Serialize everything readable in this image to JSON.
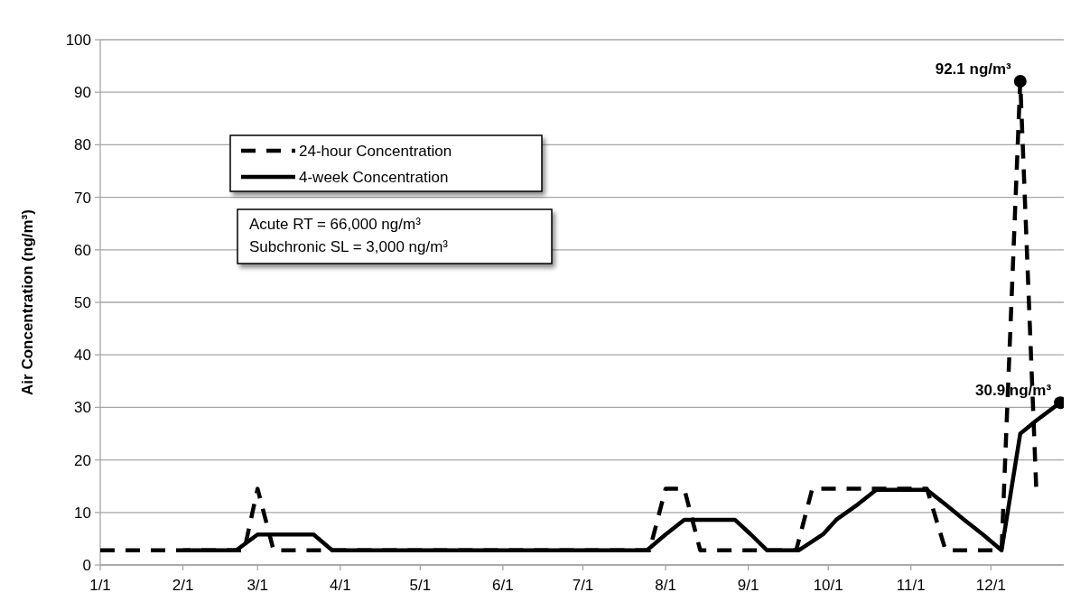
{
  "chart_data": {
    "type": "line",
    "ylabel": "Air Concentration (ng/m³)",
    "xlim": [
      "--01-01",
      "--12-29"
    ],
    "xticks": [
      {
        "value": "--01-01",
        "label": "1/1"
      },
      {
        "value": "--02-01",
        "label": "2/1"
      },
      {
        "value": "--03-01",
        "label": "3/1"
      },
      {
        "value": "--04-01",
        "label": "4/1"
      },
      {
        "value": "--05-01",
        "label": "5/1"
      },
      {
        "value": "--06-01",
        "label": "6/1"
      },
      {
        "value": "--07-01",
        "label": "7/1"
      },
      {
        "value": "--08-01",
        "label": "8/1"
      },
      {
        "value": "--09-01",
        "label": "9/1"
      },
      {
        "value": "--10-01",
        "label": "10/1"
      },
      {
        "value": "--11-01",
        "label": "11/1"
      },
      {
        "value": "--12-01",
        "label": "12/1"
      }
    ],
    "ylim": [
      0,
      100
    ],
    "yticks": [
      0,
      10,
      20,
      30,
      40,
      50,
      60,
      70,
      80,
      90,
      100
    ],
    "grid": "y",
    "legend": "top left",
    "series": [
      {
        "name": "24-hour Concentration",
        "color": "#000000",
        "line_style": "dashed",
        "x": [
          "--01-01",
          "--02-24",
          "--03-01",
          "--03-07",
          "--07-26",
          "--08-01",
          "--08-08",
          "--08-14",
          "--09-19",
          "--09-25",
          "--11-07",
          "--11-14",
          "--12-05",
          "--12-12",
          "--12-18",
          "--12-20"
        ],
        "values": [
          2.8,
          2.8,
          14.5,
          2.8,
          2.8,
          14.5,
          14.5,
          2.8,
          2.8,
          14.5,
          14.5,
          2.8,
          2.8,
          92.1,
          14.5,
          14.5
        ]
      },
      {
        "name": "4-week Concentration",
        "color": "#000000",
        "line_style": "solid",
        "x": [
          "--02-01",
          "--02-21",
          "--03-01",
          "--03-22",
          "--03-29",
          "--07-25",
          "--08-01",
          "--08-08",
          "--08-27",
          "--09-02",
          "--09-08",
          "--09-20",
          "--09-29",
          "--10-04",
          "--10-12",
          "--10-19",
          "--11-07",
          "--11-14",
          "--11-21",
          "--11-28",
          "--12-05",
          "--12-12",
          "--12-18",
          "--12-27"
        ],
        "values": [
          2.8,
          2.8,
          5.8,
          5.8,
          2.8,
          2.8,
          5.8,
          8.6,
          8.6,
          5.8,
          2.8,
          2.8,
          5.8,
          8.6,
          11.5,
          14.3,
          14.3,
          11.5,
          8.6,
          5.8,
          2.8,
          25,
          27.5,
          30.9
        ]
      }
    ],
    "annotations": [
      {
        "text": "92.1 ng/m³",
        "x": "--12-12",
        "y": 92.1
      },
      {
        "text": "30.9 ng/m³",
        "x": "--12-27",
        "y": 30.9
      },
      "Acute RT = 66,000 ng/m³",
      "Subchronic SL = 3,000 ng/m³"
    ]
  }
}
